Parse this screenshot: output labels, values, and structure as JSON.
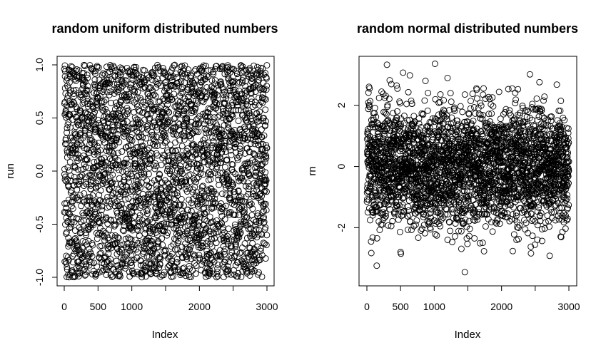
{
  "chart_data": [
    {
      "type": "scatter",
      "title": "random uniform distributed numbers",
      "xlabel": "Index",
      "ylabel": "run",
      "xlim": [
        0,
        3000
      ],
      "ylim": [
        -1,
        1
      ],
      "xticks": [
        0,
        500,
        1000,
        2000,
        3000
      ],
      "xtick_labels": [
        "0",
        "500",
        "1000",
        "2000",
        "3000"
      ],
      "xticks_unlabeled": [
        1500,
        2500
      ],
      "yticks": [
        -1.0,
        -0.5,
        0.0,
        0.5,
        1.0
      ],
      "ytick_labels": [
        "-1.0",
        "-0.5",
        "0.0",
        "0.5",
        "1.0"
      ],
      "grid": false,
      "marker": "open-circle",
      "marker_color": "#000000",
      "series": [
        {
          "distribution": "uniform",
          "n": 3000,
          "x_start": 1,
          "x_end": 3000,
          "min": -1.0,
          "max": 1.0
        }
      ]
    },
    {
      "type": "scatter",
      "title": "random normal distributed numbers",
      "xlabel": "Index",
      "ylabel": "rn",
      "xlim": [
        0,
        3000
      ],
      "ylim": [
        -3.9,
        3.6
      ],
      "xticks": [
        0,
        500,
        1000,
        2000,
        3000
      ],
      "xtick_labels": [
        "0",
        "500",
        "1000",
        "2000",
        "3000"
      ],
      "xticks_unlabeled": [
        1500,
        2500
      ],
      "yticks": [
        -2,
        0,
        2
      ],
      "ytick_labels": [
        "-2",
        "0",
        "2"
      ],
      "grid": false,
      "marker": "open-circle",
      "marker_color": "#000000",
      "series": [
        {
          "distribution": "normal",
          "n": 3000,
          "x_start": 1,
          "x_end": 3000,
          "mean": 0,
          "sd": 1,
          "min": -3.6,
          "max": 3.6
        }
      ]
    }
  ]
}
